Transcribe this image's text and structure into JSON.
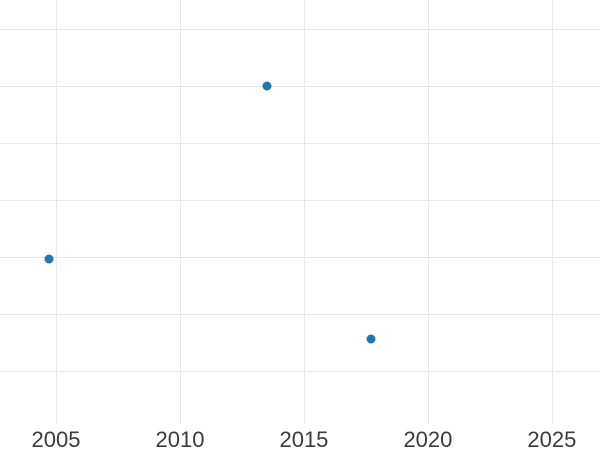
{
  "chart_data": {
    "type": "scatter",
    "title": "",
    "xlabel": "",
    "ylabel": "",
    "x_tick_labels": [
      "2005",
      "2010",
      "2015",
      "2020",
      "2025"
    ],
    "x_tick_values": [
      2005,
      2010,
      2015,
      2020,
      2025
    ],
    "points": [
      {
        "x": 2004.7,
        "y": 1.97
      },
      {
        "x": 2013.5,
        "y": 5.0
      },
      {
        "x": 2017.7,
        "y": 0.55
      }
    ],
    "y_axis_note": "y-axis tick labels are cropped outside the visible frame; y values given in gridline units above the lowest visible horizontal gridline",
    "y_gridline_units": [
      0,
      1,
      2,
      3,
      4,
      5,
      6
    ],
    "xlim": [
      2002.74,
      2026.94
    ],
    "ylim": [
      -1.39,
      6.51
    ],
    "grid": true,
    "legend": false,
    "marker_color": "#1f77b4",
    "gridline_color": "#e7e7e7",
    "tick_label_color": "#3b3b3b",
    "background_color": "#ffffff"
  }
}
